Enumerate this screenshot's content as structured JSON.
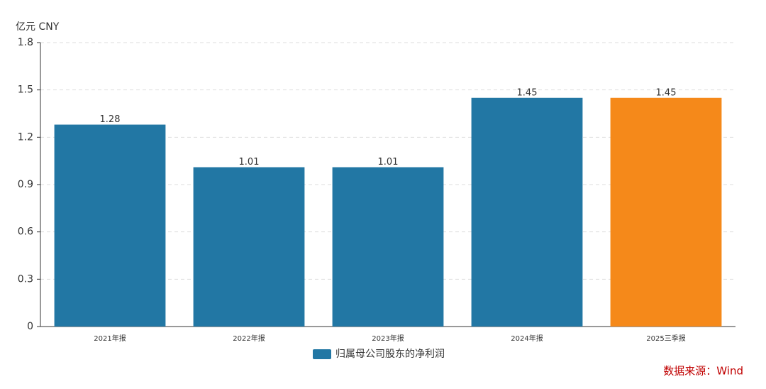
{
  "chart_data": {
    "type": "bar",
    "unit_label": "亿元  CNY",
    "categories": [
      "2021年报",
      "2022年报",
      "2023年报",
      "2024年报",
      "2025三季报"
    ],
    "series": [
      {
        "name": "归属母公司股东的净利润",
        "color": "#2277a4",
        "values": [
          1.28,
          1.01,
          1.01,
          1.45,
          1.45
        ]
      }
    ],
    "colors": [
      "#2277a4",
      "#2277a4",
      "#2277a4",
      "#2277a4",
      "#f5891a"
    ],
    "ylim": [
      0,
      1.8
    ],
    "yticks": [
      0,
      0.3,
      0.6,
      0.9,
      1.2,
      1.5,
      1.8
    ],
    "grid": true,
    "source": "数据来源：Wind"
  }
}
